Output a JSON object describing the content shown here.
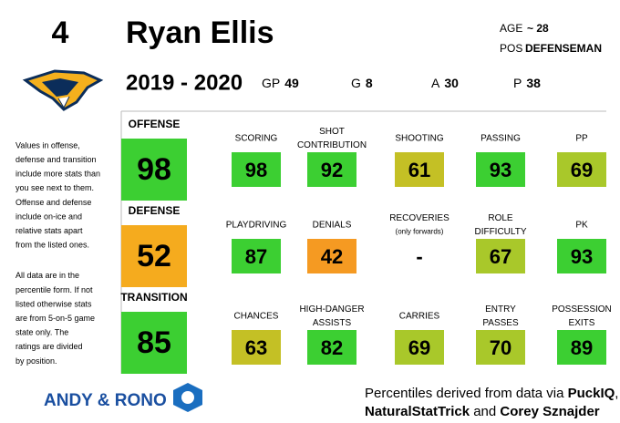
{
  "header": {
    "number": "4",
    "name": "Ryan Ellis",
    "age_label": "AGE",
    "age": "~ 28",
    "pos_label": "POS",
    "pos": "DEFENSEMAN",
    "season": "2019 - 2020",
    "stats": [
      {
        "label": "GP",
        "value": "49"
      },
      {
        "label": "G",
        "value": "8"
      },
      {
        "label": "A",
        "value": "30"
      },
      {
        "label": "P",
        "value": "38"
      }
    ]
  },
  "notes": [
    [
      "Values in offense,",
      "defense and transition",
      "include more stats than",
      "you see next to them.",
      "Offense and defense",
      "include on-ice and",
      "relative stats apart",
      "from the listed ones."
    ],
    [
      "All data are in the",
      "percentile form. If not",
      "listed otherwise stats",
      "are from 5-on-5 game",
      "state only. The",
      "ratings are divided",
      "by position."
    ]
  ],
  "sections": [
    {
      "name": "OFFENSE",
      "value": "98",
      "color": "#3ccf32",
      "stats": [
        {
          "label": [
            "SCORING"
          ],
          "value": "98",
          "color": "#3ccf32"
        },
        {
          "label": [
            "SHOT",
            "CONTRIBUTION"
          ],
          "value": "92",
          "color": "#3ccf32"
        },
        {
          "label": [
            "SHOOTING"
          ],
          "value": "61",
          "color": "#c4c025"
        },
        {
          "label": [
            "PASSING"
          ],
          "value": "93",
          "color": "#3ccf32"
        },
        {
          "label": [
            "PP"
          ],
          "value": "69",
          "color": "#a9c82a"
        }
      ]
    },
    {
      "name": "DEFENSE",
      "value": "52",
      "color": "#f5ab1e",
      "stats": [
        {
          "label": [
            "PLAYDRIVING"
          ],
          "value": "87",
          "color": "#3ccf32"
        },
        {
          "label": [
            "DENIALS"
          ],
          "value": "42",
          "color": "#f59a22"
        },
        {
          "label": [
            "RECOVERIES"
          ],
          "note": "(only forwards)",
          "value": "-"
        },
        {
          "label": [
            "ROLE",
            "DIFFICULTY"
          ],
          "value": "67",
          "color": "#a9c82a"
        },
        {
          "label": [
            "PK"
          ],
          "value": "93",
          "color": "#3ccf32"
        }
      ]
    },
    {
      "name": "TRANSITION",
      "value": "85",
      "color": "#3ccf32",
      "stats": [
        {
          "label": [
            "CHANCES"
          ],
          "value": "63",
          "color": "#c4c025"
        },
        {
          "label": [
            "HIGH-DANGER",
            "ASSISTS"
          ],
          "value": "82",
          "color": "#3ccf32"
        },
        {
          "label": [
            "CARRIES"
          ],
          "value": "69",
          "color": "#a9c82a"
        },
        {
          "label": [
            "ENTRY",
            "PASSES"
          ],
          "value": "70",
          "color": "#a9c82a"
        },
        {
          "label": [
            "POSSESSION",
            "EXITS"
          ],
          "value": "89",
          "color": "#3ccf32"
        }
      ]
    }
  ],
  "brand": "ANDY & RONO",
  "footer": [
    [
      {
        "text": "Percentiles derived from data via ",
        "bold": false
      },
      {
        "text": "PuckIQ",
        "bold": true
      },
      {
        "text": ",",
        "bold": false
      }
    ],
    [
      {
        "text": "NaturalStatTrick",
        "bold": true
      },
      {
        "text": " and ",
        "bold": false
      },
      {
        "text": "Corey Sznajder",
        "bold": true
      }
    ]
  ]
}
